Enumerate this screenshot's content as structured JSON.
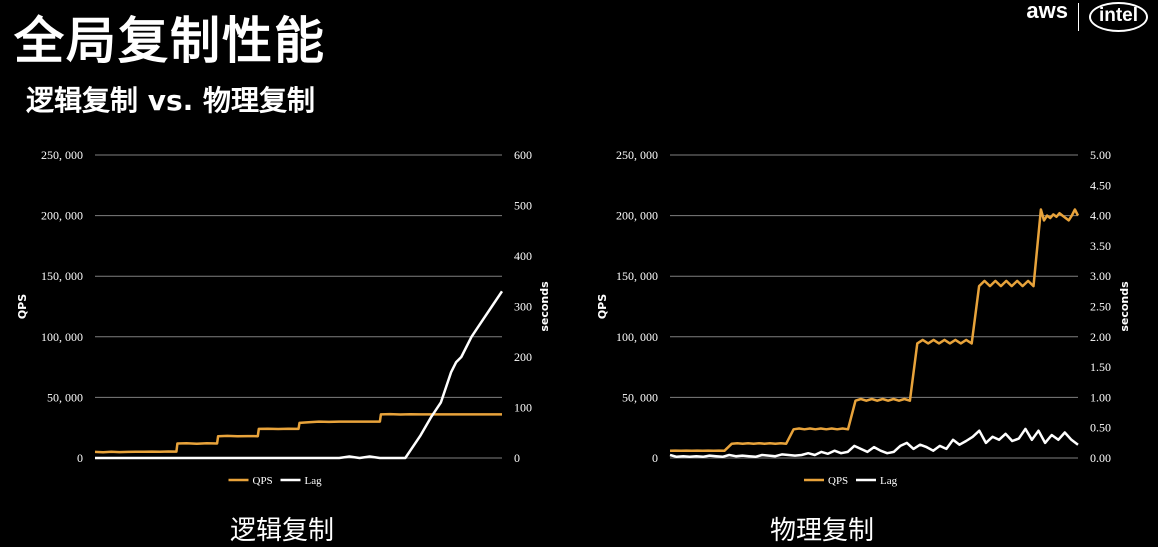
{
  "slide": {
    "title": "全局复制性能",
    "subtitle": "逻辑复制 vs. 物理复制"
  },
  "logos": {
    "aws": "aws",
    "intel": "intel"
  },
  "colors": {
    "qps": "#E8A33B",
    "lag": "#FFFFFF",
    "grid": "#7F7F7F",
    "background": "#000000"
  },
  "chart_data": [
    {
      "type": "line",
      "caption": "逻辑复制",
      "ylabel": "QPS",
      "y2label": "seconds",
      "ylim": [
        0,
        250000
      ],
      "y2lim": [
        0,
        600
      ],
      "yticks": [
        0,
        50000,
        100000,
        150000,
        200000,
        250000
      ],
      "ytick_labels": [
        "0",
        "50, 000",
        "100, 000",
        "150, 000",
        "200, 000",
        "250, 000"
      ],
      "y2ticks": [
        0,
        100,
        200,
        300,
        400,
        500,
        600
      ],
      "y2tick_labels": [
        "0",
        "100",
        "200",
        "300",
        "400",
        "500",
        "600"
      ],
      "grid": true,
      "legend_position": "bottom",
      "x": [
        0,
        8,
        16,
        24,
        32,
        40,
        48,
        56,
        64,
        72,
        80,
        81,
        90,
        100,
        110,
        120,
        121,
        130,
        140,
        150,
        160,
        161,
        170,
        180,
        190,
        200,
        201,
        210,
        220,
        230,
        240,
        241,
        250,
        260,
        270,
        280,
        281,
        290,
        300,
        310,
        320,
        321,
        330,
        340,
        350,
        360,
        361,
        370,
        380,
        390,
        400
      ],
      "series": [
        {
          "name": "QPS",
          "axis": "left",
          "values": [
            5000,
            4800,
            5100,
            4900,
            5000,
            5200,
            5100,
            5300,
            5200,
            5400,
            5300,
            12000,
            12200,
            11800,
            12100,
            12000,
            18000,
            18200,
            17900,
            18100,
            18000,
            24000,
            24100,
            23900,
            24200,
            24000,
            29000,
            29500,
            30000,
            29800,
            30000,
            30000,
            30000,
            30000,
            30000,
            30000,
            36000,
            36200,
            35900,
            36100,
            36000,
            36000,
            36000,
            36000,
            36000,
            36000,
            36000,
            36000,
            36000,
            36000,
            36000
          ]
        }
      ],
      "lag": {
        "name": "Lag",
        "axis": "right",
        "x": [
          0,
          40,
          80,
          120,
          160,
          200,
          220,
          240,
          250,
          260,
          270,
          280,
          290,
          300,
          305,
          310,
          320,
          330,
          340,
          345,
          350,
          355,
          360,
          370,
          380,
          390,
          400
        ],
        "values": [
          0,
          0,
          0,
          0,
          0,
          0,
          0,
          0,
          3,
          0,
          3,
          0,
          0,
          0,
          0,
          15,
          45,
          80,
          110,
          140,
          170,
          190,
          200,
          240,
          270,
          300,
          330
        ]
      }
    },
    {
      "type": "line",
      "caption": "物理复制",
      "ylabel": "QPS",
      "y2label": "seconds",
      "ylim": [
        0,
        250000
      ],
      "y2lim": [
        0,
        5
      ],
      "yticks": [
        0,
        50000,
        100000,
        150000,
        200000,
        250000
      ],
      "ytick_labels": [
        "0",
        "50, 000",
        "100, 000",
        "150, 000",
        "200, 000",
        "250, 000"
      ],
      "y2ticks": [
        0,
        0.5,
        1,
        1.5,
        2,
        2.5,
        3,
        3.5,
        4,
        4.5,
        5
      ],
      "y2tick_labels": [
        "0.00",
        "0.50",
        "1.00",
        "1.50",
        "2.00",
        "2.50",
        "3.00",
        "3.50",
        "4.00",
        "4.50",
        "5.00"
      ],
      "grid": true,
      "legend_position": "bottom",
      "legend": [
        "QPS",
        "Lag"
      ],
      "x_steps": [
        0,
        50,
        100,
        150,
        200,
        250,
        300,
        330
      ],
      "qps_steps": [
        6000,
        12000,
        24000,
        48000,
        96000,
        144000,
        200000
      ],
      "qps_tail": [
        205000,
        196000,
        200000,
        198000,
        201000,
        199000,
        202000,
        200000,
        198000,
        196000,
        200000,
        205000,
        200000
      ],
      "lag": {
        "name": "Lag",
        "axis": "right",
        "values": [
          0.05,
          0.02,
          0.03,
          0.02,
          0.03,
          0.02,
          0.04,
          0.03,
          0.02,
          0.05,
          0.03,
          0.04,
          0.03,
          0.02,
          0.05,
          0.04,
          0.03,
          0.06,
          0.05,
          0.04,
          0.05,
          0.08,
          0.05,
          0.1,
          0.07,
          0.12,
          0.08,
          0.1,
          0.2,
          0.15,
          0.1,
          0.18,
          0.12,
          0.08,
          0.1,
          0.2,
          0.25,
          0.15,
          0.22,
          0.18,
          0.12,
          0.2,
          0.15,
          0.3,
          0.22,
          0.28,
          0.35,
          0.45,
          0.25,
          0.35,
          0.3,
          0.4,
          0.28,
          0.32,
          0.48,
          0.3,
          0.45,
          0.25,
          0.38,
          0.3,
          0.42,
          0.3,
          0.22
        ]
      }
    }
  ]
}
